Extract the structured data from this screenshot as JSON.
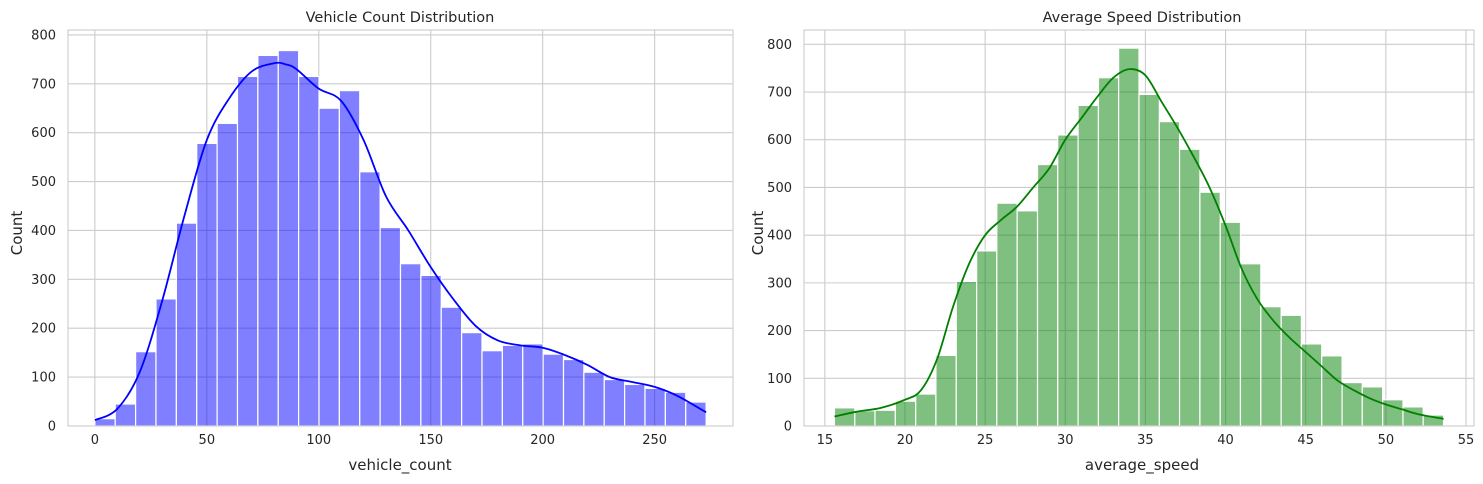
{
  "chart_data": [
    {
      "type": "histogram",
      "title": "Vehicle Count Distribution",
      "xlabel": "vehicle_count",
      "ylabel": "Count",
      "xlim": [
        -12,
        285
      ],
      "ylim": [
        0,
        810
      ],
      "xticks": [
        0,
        50,
        100,
        150,
        200,
        250
      ],
      "yticks": [
        0,
        100,
        200,
        300,
        400,
        500,
        600,
        700,
        800
      ],
      "bar_color": "#0000ff",
      "bar_alpha": 0.5,
      "line_color": "#0000ff",
      "grid": true,
      "bin_edges": [
        0,
        9.1,
        18.2,
        27.3,
        36.4,
        45.5,
        54.6,
        63.7,
        72.8,
        81.9,
        91.0,
        100.1,
        109.2,
        118.3,
        127.4,
        136.5,
        145.6,
        154.7,
        163.8,
        172.9,
        182.0,
        191.1,
        200.2,
        209.3,
        218.4,
        227.5,
        236.6,
        245.7,
        254.8,
        263.9,
        273.0
      ],
      "counts": [
        15,
        45,
        152,
        260,
        415,
        578,
        619,
        715,
        758,
        768,
        715,
        650,
        686,
        520,
        406,
        332,
        308,
        243,
        191,
        154,
        165,
        168,
        147,
        136,
        110,
        95,
        85,
        77,
        69,
        49
      ],
      "kde": {
        "x": [
          0,
          10,
          20,
          30,
          40,
          50,
          60,
          70,
          80,
          85,
          90,
          100,
          110,
          120,
          130,
          140,
          150,
          160,
          170,
          180,
          190,
          200,
          210,
          220,
          230,
          240,
          250,
          260,
          273
        ],
        "y": [
          12,
          35,
          110,
          255,
          430,
          585,
          670,
          725,
          742,
          740,
          730,
          690,
          665,
          585,
          470,
          400,
          325,
          260,
          205,
          175,
          165,
          160,
          145,
          125,
          100,
          90,
          80,
          62,
          28
        ]
      }
    },
    {
      "type": "histogram",
      "title": "Average Speed Distribution",
      "xlabel": "average_speed",
      "ylabel": "Count",
      "xlim": [
        13.7,
        55.5
      ],
      "ylim": [
        0,
        830
      ],
      "xticks": [
        15,
        20,
        25,
        30,
        35,
        40,
        45,
        50,
        55
      ],
      "yticks": [
        0,
        100,
        200,
        300,
        400,
        500,
        600,
        700,
        800
      ],
      "bar_color": "#008000",
      "bar_alpha": 0.5,
      "line_color": "#008000",
      "grid": true,
      "bin_edges": [
        15.6,
        16.87,
        18.13,
        19.4,
        20.67,
        21.93,
        23.2,
        24.47,
        25.73,
        27.0,
        28.27,
        29.53,
        30.8,
        32.07,
        33.33,
        34.6,
        35.87,
        37.13,
        38.4,
        39.67,
        40.93,
        42.2,
        43.47,
        44.73,
        46.0,
        47.27,
        48.53,
        49.8,
        51.07,
        52.33,
        53.6
      ],
      "counts": [
        38,
        32,
        33,
        52,
        67,
        148,
        303,
        367,
        467,
        451,
        548,
        610,
        672,
        730,
        792,
        695,
        638,
        580,
        490,
        427,
        340,
        250,
        232,
        172,
        147,
        91,
        82,
        55,
        40,
        23
      ],
      "kde": {
        "x": [
          15.6,
          17,
          18.5,
          20,
          21,
          22,
          23,
          24,
          25,
          26,
          27,
          28,
          29,
          30,
          31,
          32,
          33,
          34,
          35,
          36,
          37,
          38,
          39,
          40,
          41,
          42,
          43,
          44,
          45,
          46,
          47,
          48,
          49,
          50,
          51,
          52,
          53.6
        ],
        "y": [
          20,
          30,
          38,
          55,
          75,
          140,
          250,
          340,
          400,
          432,
          460,
          500,
          540,
          600,
          645,
          690,
          730,
          748,
          735,
          680,
          625,
          565,
          500,
          420,
          330,
          265,
          220,
          185,
          155,
          125,
          95,
          75,
          58,
          45,
          35,
          25,
          15
        ]
      }
    }
  ]
}
